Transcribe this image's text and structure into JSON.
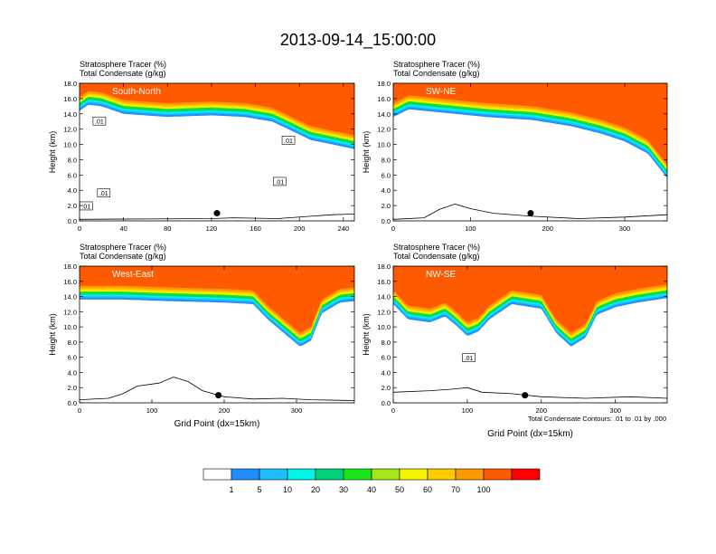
{
  "figure": {
    "title": "2013-09-14_15:00:00",
    "footnote": "Total Condensate Contours: .01 to .01 by .000"
  },
  "chart_data": [
    {
      "type": "heatmap",
      "panel_label": "South-North",
      "title_lines": [
        "Stratosphere Tracer   (%)",
        "Total Condensate   (g/kg)"
      ],
      "xlabel": "",
      "ylabel": "Height (km)",
      "xlim": [
        0,
        250
      ],
      "ylim": [
        0,
        18
      ],
      "x_ticks": [
        0,
        40,
        80,
        120,
        160,
        200,
        240
      ],
      "y_ticks": [
        0.0,
        2.0,
        4.0,
        6.0,
        8.0,
        10.0,
        12.0,
        14.0,
        16.0,
        18.0
      ],
      "marker": {
        "x": 125,
        "y": 1.0
      },
      "tracer_lower_boundary_km": [
        [
          0,
          14.4
        ],
        [
          8,
          15.2
        ],
        [
          20,
          15.0
        ],
        [
          40,
          14.0
        ],
        [
          80,
          13.6
        ],
        [
          120,
          13.8
        ],
        [
          150,
          13.6
        ],
        [
          175,
          13.0
        ],
        [
          190,
          12.0
        ],
        [
          210,
          10.6
        ],
        [
          230,
          10.0
        ],
        [
          250,
          9.4
        ]
      ],
      "terrain_km": [
        [
          0,
          0.2
        ],
        [
          60,
          0.25
        ],
        [
          120,
          0.3
        ],
        [
          140,
          0.4
        ],
        [
          180,
          0.3
        ],
        [
          210,
          0.6
        ],
        [
          230,
          0.8
        ],
        [
          250,
          0.9
        ]
      ],
      "contour_labels": [
        {
          "text": ".01",
          "x": 18,
          "y": 13.0
        },
        {
          "text": ".01",
          "x": 22,
          "y": 3.6
        },
        {
          "text": ".01",
          "x": 6,
          "y": 1.9
        },
        {
          "text": ".01",
          "x": 190,
          "y": 10.5
        },
        {
          "text": ".01",
          "x": 182,
          "y": 5.1
        }
      ]
    },
    {
      "type": "heatmap",
      "panel_label": "SW-NE",
      "title_lines": [
        "Stratosphere Tracer   (%)",
        "Total Condensate   (g/kg)"
      ],
      "xlabel": "",
      "ylabel": "Height (km)",
      "xlim": [
        0,
        355
      ],
      "ylim": [
        0,
        18
      ],
      "x_ticks": [
        0,
        100,
        200,
        300
      ],
      "y_ticks": [
        0.0,
        2.0,
        4.0,
        6.0,
        8.0,
        10.0,
        12.0,
        14.0,
        16.0,
        18.0
      ],
      "marker": {
        "x": 178,
        "y": 1.0
      },
      "tracer_lower_boundary_km": [
        [
          0,
          13.6
        ],
        [
          20,
          14.6
        ],
        [
          60,
          14.2
        ],
        [
          120,
          13.6
        ],
        [
          180,
          13.2
        ],
        [
          230,
          12.4
        ],
        [
          270,
          11.4
        ],
        [
          300,
          10.4
        ],
        [
          330,
          8.8
        ],
        [
          355,
          5.6
        ]
      ],
      "terrain_km": [
        [
          0,
          0.2
        ],
        [
          40,
          0.4
        ],
        [
          60,
          1.5
        ],
        [
          80,
          2.2
        ],
        [
          100,
          1.6
        ],
        [
          130,
          1.0
        ],
        [
          180,
          0.6
        ],
        [
          240,
          0.3
        ],
        [
          300,
          0.5
        ],
        [
          355,
          0.8
        ]
      ],
      "contour_labels": []
    },
    {
      "type": "heatmap",
      "panel_label": "West-East",
      "title_lines": [
        "Stratosphere Tracer   (%)",
        "Total Condensate   (g/kg)"
      ],
      "xlabel": "Grid Point (dx=15km)",
      "ylabel": "Height (km)",
      "xlim": [
        0,
        380
      ],
      "ylim": [
        0,
        18
      ],
      "x_ticks": [
        0,
        100,
        200,
        300
      ],
      "y_ticks": [
        0.0,
        2.0,
        4.0,
        6.0,
        8.0,
        10.0,
        12.0,
        14.0,
        16.0,
        18.0
      ],
      "marker": {
        "x": 192,
        "y": 1.0
      },
      "tracer_lower_boundary_km": [
        [
          0,
          13.6
        ],
        [
          60,
          13.6
        ],
        [
          120,
          13.4
        ],
        [
          200,
          13.2
        ],
        [
          240,
          13.0
        ],
        [
          260,
          11.0
        ],
        [
          285,
          9.0
        ],
        [
          305,
          7.4
        ],
        [
          320,
          8.2
        ],
        [
          335,
          11.8
        ],
        [
          360,
          13.2
        ],
        [
          380,
          13.4
        ]
      ],
      "terrain_km": [
        [
          0,
          0.4
        ],
        [
          40,
          0.6
        ],
        [
          60,
          1.2
        ],
        [
          80,
          2.2
        ],
        [
          110,
          2.6
        ],
        [
          130,
          3.4
        ],
        [
          150,
          2.8
        ],
        [
          170,
          1.6
        ],
        [
          200,
          0.8
        ],
        [
          240,
          0.5
        ],
        [
          280,
          0.6
        ],
        [
          320,
          0.4
        ],
        [
          380,
          0.3
        ]
      ],
      "contour_labels": []
    },
    {
      "type": "heatmap",
      "panel_label": "NW-SE",
      "title_lines": [
        "Stratosphere Tracer   (%)",
        "Total Condensate   (g/kg)"
      ],
      "xlabel": "Grid Point (dx=15km)",
      "ylabel": "Height (km)",
      "xlim": [
        0,
        370
      ],
      "ylim": [
        0,
        18
      ],
      "x_ticks": [
        0,
        100,
        200,
        300
      ],
      "y_ticks": [
        0.0,
        2.0,
        4.0,
        6.0,
        8.0,
        10.0,
        12.0,
        14.0,
        16.0,
        18.0
      ],
      "marker": {
        "x": 178,
        "y": 1.0
      },
      "tracer_lower_boundary_km": [
        [
          0,
          13.0
        ],
        [
          20,
          11.0
        ],
        [
          50,
          10.6
        ],
        [
          70,
          11.4
        ],
        [
          85,
          10.2
        ],
        [
          100,
          8.8
        ],
        [
          115,
          9.4
        ],
        [
          130,
          11.0
        ],
        [
          160,
          13.0
        ],
        [
          200,
          12.4
        ],
        [
          220,
          9.2
        ],
        [
          240,
          7.4
        ],
        [
          260,
          8.6
        ],
        [
          275,
          11.6
        ],
        [
          300,
          12.6
        ],
        [
          330,
          13.2
        ],
        [
          370,
          13.8
        ]
      ],
      "terrain_km": [
        [
          0,
          1.4
        ],
        [
          50,
          1.6
        ],
        [
          80,
          1.8
        ],
        [
          100,
          2.0
        ],
        [
          120,
          1.4
        ],
        [
          160,
          1.2
        ],
        [
          200,
          0.8
        ],
        [
          260,
          0.6
        ],
        [
          320,
          0.8
        ],
        [
          370,
          0.6
        ]
      ],
      "contour_labels": [
        {
          "text": ".01",
          "x": 102,
          "y": 5.9
        }
      ]
    }
  ],
  "colorbar": {
    "labels": [
      "1",
      "5",
      "10",
      "20",
      "30",
      "40",
      "50",
      "60",
      "70",
      "100"
    ],
    "colors": [
      "#ffffff",
      "#1f8fff",
      "#1fbfff",
      "#00f5e6",
      "#00d27a",
      "#19e619",
      "#a5e619",
      "#f5f500",
      "#ffcc00",
      "#ff9b00",
      "#ff5a00",
      "#ff0000"
    ]
  }
}
